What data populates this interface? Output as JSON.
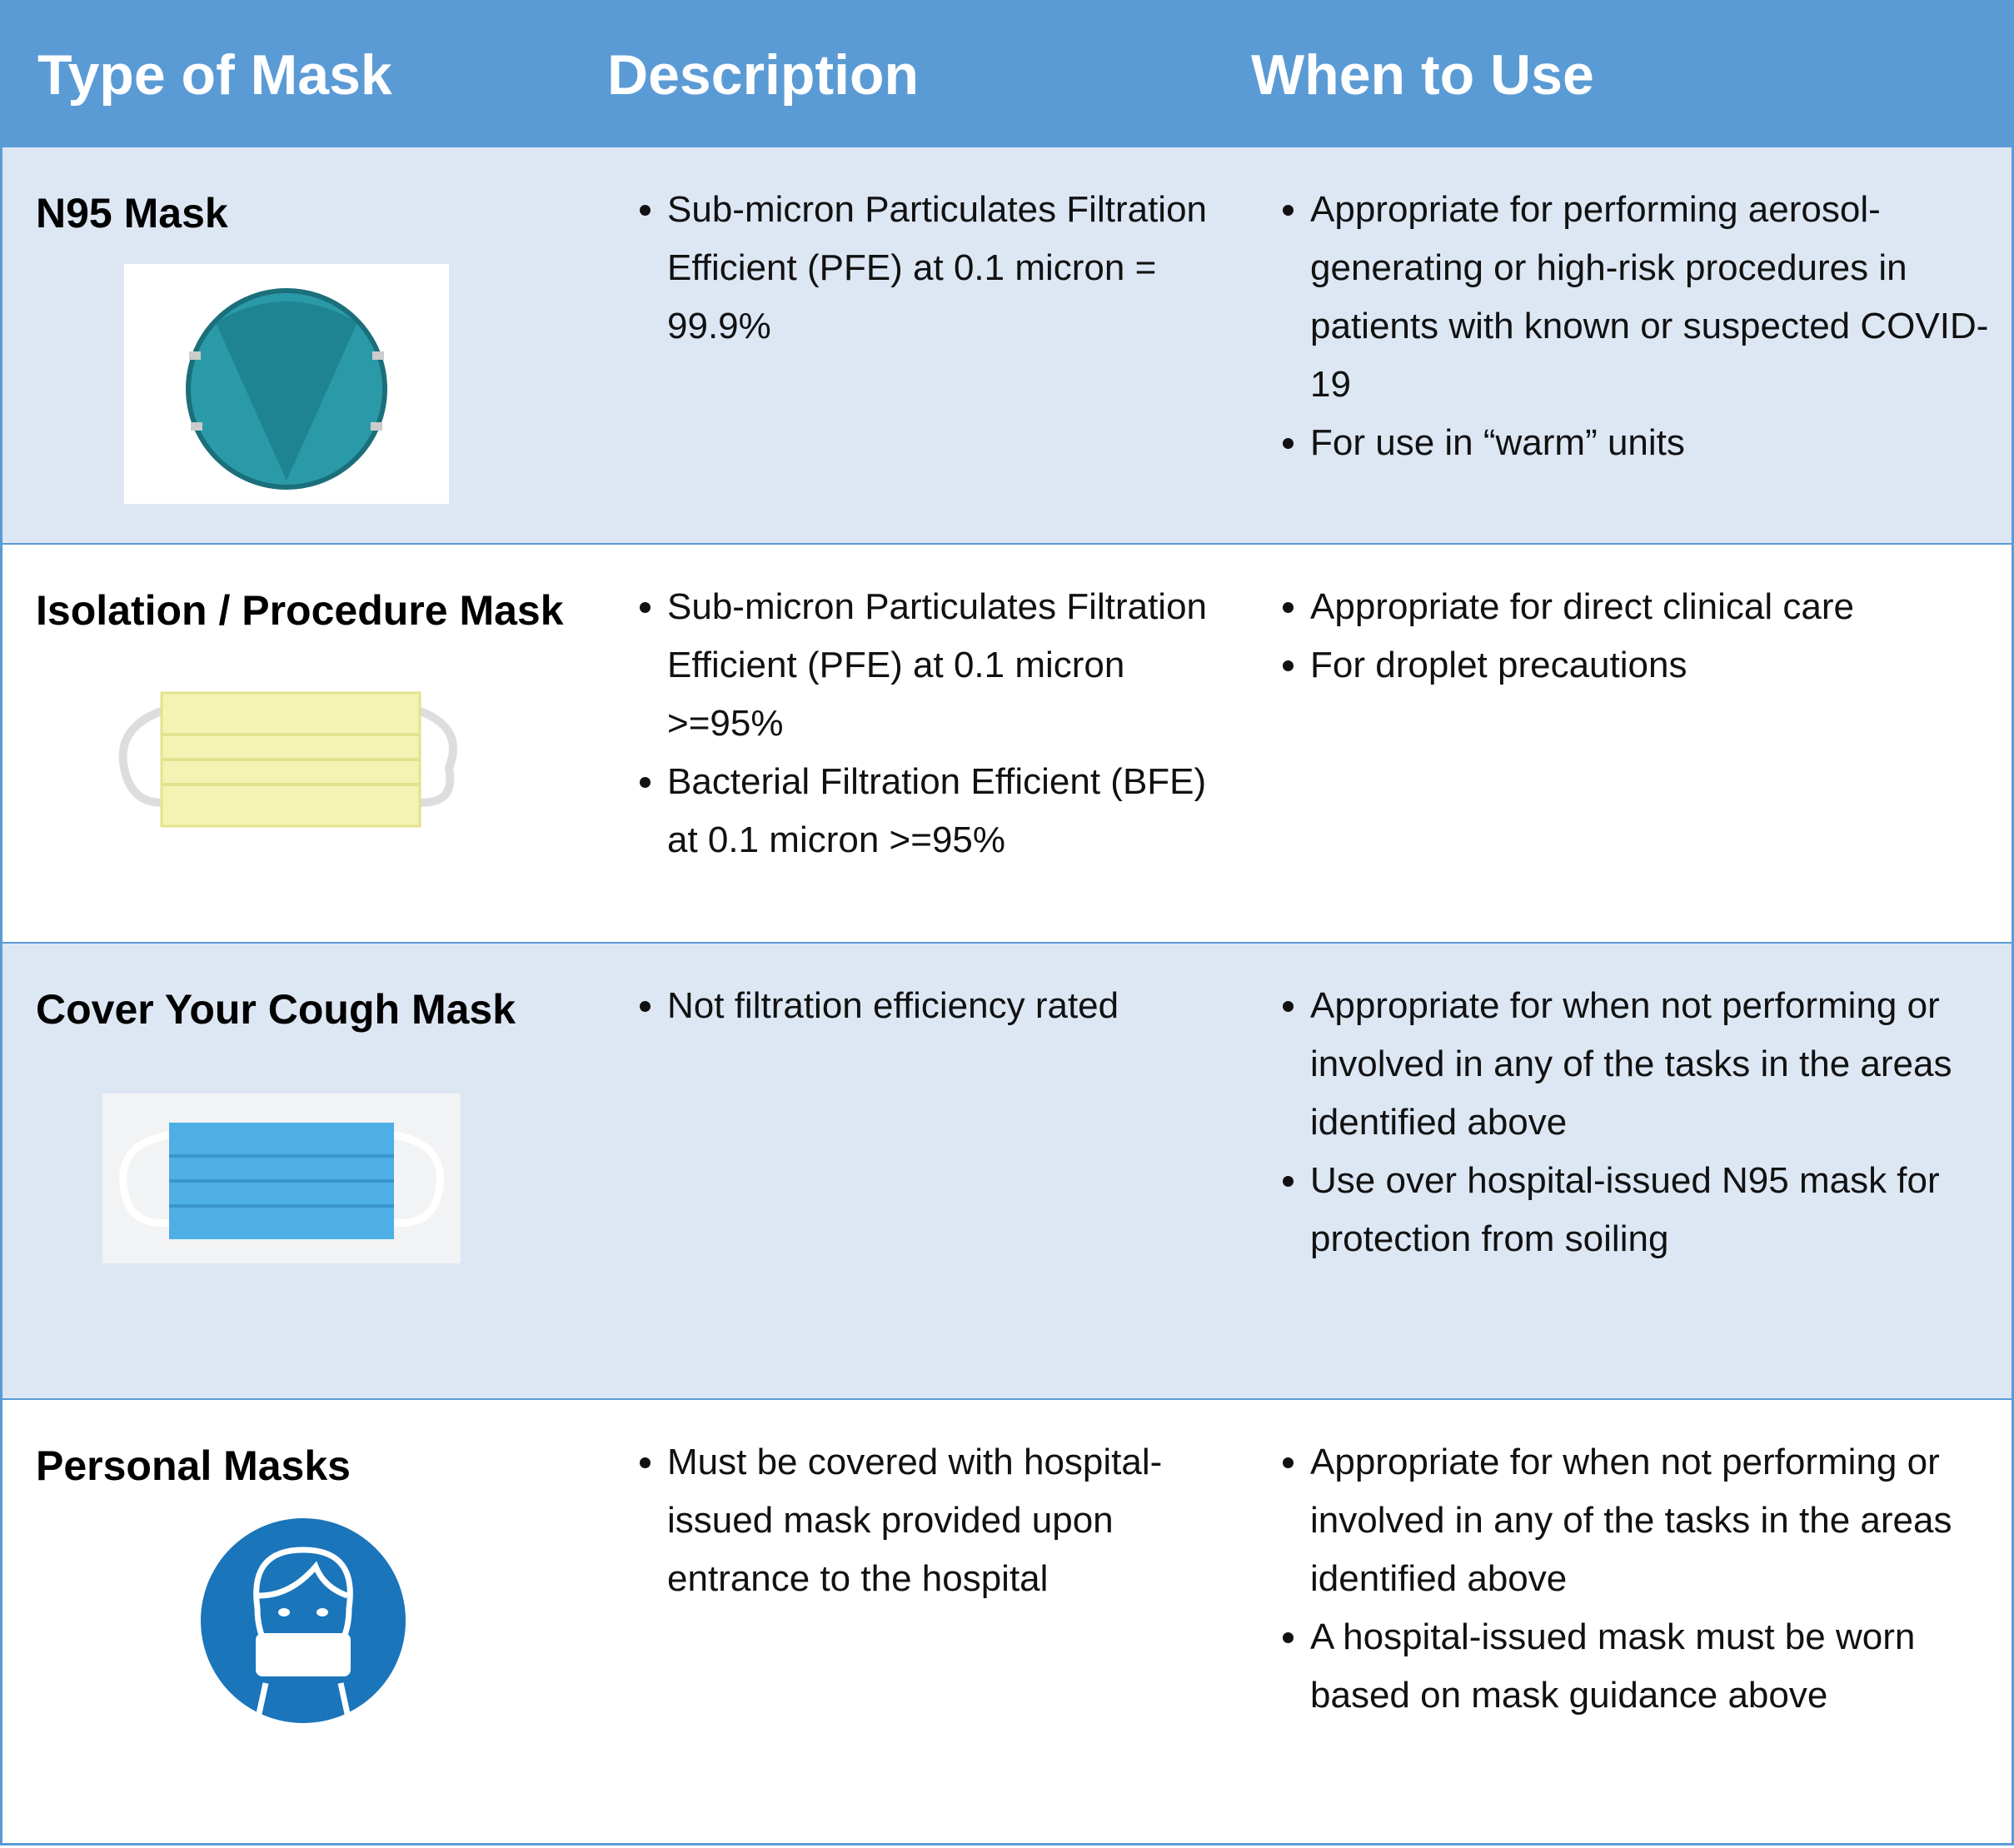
{
  "table": {
    "headers": [
      "Type of Mask",
      "Description",
      "When to Use"
    ],
    "rows": [
      {
        "type": "N95 Mask",
        "description": [
          "Sub-micron Particulates Filtration Efficient (PFE) at 0.1 micron = 99.9%"
        ],
        "when_to_use": [
          "Appropriate for performing aerosol-generating or high-risk procedures in patients with known or suspected COVID-19",
          "For use in “warm” units"
        ]
      },
      {
        "type": "Isolation / Procedure Mask",
        "description": [
          "Sub-micron Particulates Filtration Efficient (PFE) at 0.1 micron >=95%",
          "Bacterial Filtration Efficient (BFE) at 0.1 micron >=95%"
        ],
        "when_to_use": [
          "Appropriate for direct clinical care",
          "For droplet precautions"
        ]
      },
      {
        "type": "Cover Your Cough Mask",
        "description": [
          "Not filtration efficiency rated"
        ],
        "when_to_use": [
          "Appropriate for when not performing or involved in any of the tasks in the areas identified above",
          "Use over hospital-issued N95 mask for protection from soiling"
        ]
      },
      {
        "type": "Personal Masks",
        "description": [
          "Must be covered with hospital-issued mask provided upon entrance to the hospital"
        ],
        "when_to_use": [
          "Appropriate for when not performing or involved in any of the tasks in the areas identified above",
          "A hospital-issued mask must be worn based on mask guidance above"
        ]
      }
    ]
  }
}
